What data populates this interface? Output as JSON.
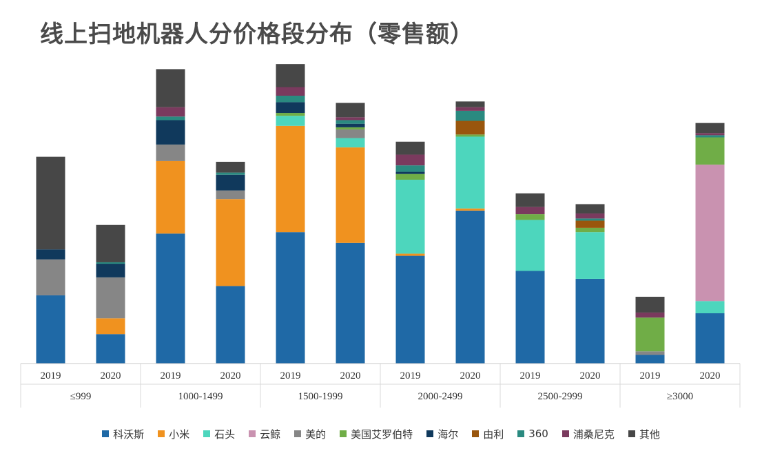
{
  "title": "线上扫地机器人分价格段分布（零售额）",
  "colors": {
    "科沃斯": "#1f69a6",
    "小米": "#f0921f",
    "石头": "#4dd6bd",
    "云鲸": "#c992b0",
    "美的": "#868686",
    "美国艾罗伯特": "#70ad47",
    "海尔": "#10395c",
    "由利": "#99560d",
    "360": "#2a8a80",
    "浦桑尼克": "#7a3a5e",
    "其他": "#474747"
  },
  "chart_data": {
    "type": "bar",
    "stacked": true,
    "title": "线上扫地机器人分价格段分布（零售额）",
    "groups": [
      "≤999",
      "1000-1499",
      "1500-1999",
      "2000-2499",
      "2500-2999",
      "≥3000"
    ],
    "years": [
      "2019",
      "2020"
    ],
    "categories": [
      "≤999 2019",
      "≤999 2020",
      "1000-1499 2019",
      "1000-1499 2020",
      "1500-1999 2019",
      "1500-1999 2020",
      "2000-2499 2019",
      "2000-2499 2020",
      "2500-2999 2019",
      "2500-2999 2020",
      "≥3000 2019",
      "≥3000 2020"
    ],
    "legend_position": "bottom",
    "grid": false,
    "ylim": [
      0,
      420
    ],
    "series": [
      {
        "name": "科沃斯",
        "values": [
          95,
          41,
          181,
          108,
          183,
          168,
          150,
          213,
          129,
          118,
          12,
          70
        ]
      },
      {
        "name": "小米",
        "values": [
          0,
          22,
          101,
          121,
          148,
          133,
          3,
          3,
          0,
          0,
          0,
          0
        ]
      },
      {
        "name": "石头",
        "values": [
          0,
          0,
          0,
          0,
          14,
          13,
          103,
          100,
          71,
          65,
          0,
          17
        ]
      },
      {
        "name": "云鲸",
        "values": [
          0,
          0,
          0,
          0,
          0,
          0,
          0,
          0,
          0,
          0,
          0,
          190
        ]
      },
      {
        "name": "美的",
        "values": [
          50,
          57,
          23,
          12,
          0,
          12,
          0,
          0,
          0,
          0,
          5,
          0
        ]
      },
      {
        "name": "美国艾罗伯特",
        "values": [
          0,
          0,
          0,
          0,
          4,
          3,
          8,
          3,
          8,
          6,
          47,
          38
        ]
      },
      {
        "name": "海尔",
        "values": [
          14,
          19,
          34,
          22,
          15,
          5,
          3,
          0,
          0,
          0,
          0,
          0
        ]
      },
      {
        "name": "由利",
        "values": [
          0,
          0,
          0,
          0,
          0,
          0,
          0,
          19,
          0,
          10,
          0,
          0
        ]
      },
      {
        "name": "360",
        "values": [
          0,
          2,
          5,
          3,
          9,
          5,
          9,
          14,
          0,
          3,
          0,
          3
        ]
      },
      {
        "name": "浦桑尼克",
        "values": [
          0,
          0,
          13,
          0,
          12,
          4,
          15,
          5,
          10,
          7,
          7,
          3
        ]
      },
      {
        "name": "其他",
        "values": [
          129,
          52,
          53,
          15,
          32,
          20,
          18,
          8,
          19,
          13,
          22,
          14
        ]
      }
    ]
  }
}
